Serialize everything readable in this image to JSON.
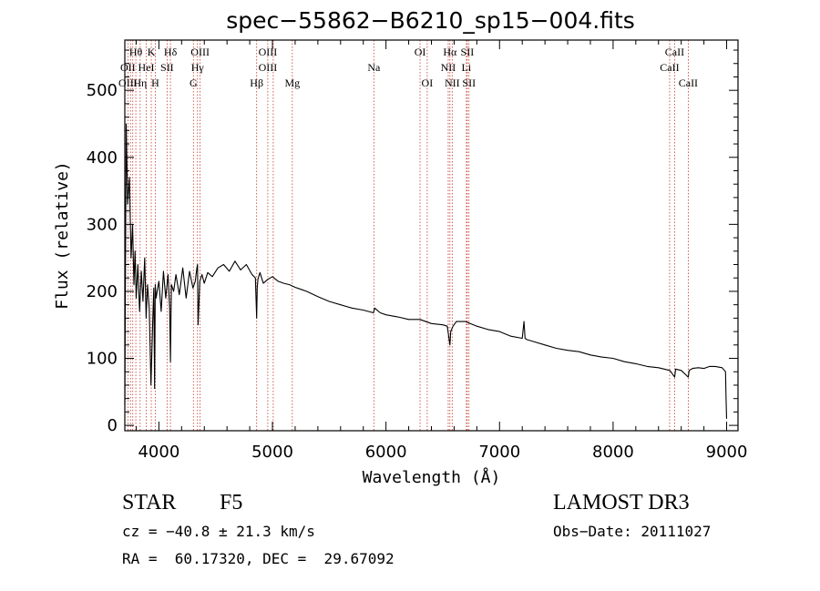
{
  "chart_data": {
    "type": "line",
    "title": "spec−55862−B6210_sp15−004.fits",
    "xlabel": "Wavelength (Å)",
    "ylabel": "Flux (relative)",
    "xlim": [
      3700,
      9100
    ],
    "ylim": [
      -8,
      575
    ],
    "xticks": [
      {
        "value": 4000,
        "label": "4000"
      },
      {
        "value": 5000,
        "label": "5000"
      },
      {
        "value": 6000,
        "label": "6000"
      },
      {
        "value": 7000,
        "label": "7000"
      },
      {
        "value": 8000,
        "label": "8000"
      },
      {
        "value": 9000,
        "label": "9000"
      }
    ],
    "yticks": [
      {
        "value": 0,
        "label": "0"
      },
      {
        "value": 100,
        "label": "100"
      },
      {
        "value": 200,
        "label": "200"
      },
      {
        "value": 300,
        "label": "300"
      },
      {
        "value": 400,
        "label": "400"
      },
      {
        "value": 500,
        "label": "500"
      }
    ],
    "series": [
      {
        "name": "spectrum",
        "x": [
          3700,
          3712,
          3725,
          3740,
          3755,
          3768,
          3780,
          3790,
          3800,
          3815,
          3830,
          3845,
          3860,
          3875,
          3888,
          3900,
          3915,
          3930,
          3945,
          3955,
          3962,
          3968,
          3975,
          3985,
          4000,
          4020,
          4040,
          4060,
          4080,
          4095,
          4102,
          4110,
          4130,
          4150,
          4180,
          4210,
          4240,
          4270,
          4300,
          4320,
          4335,
          4340,
          4345,
          4360,
          4380,
          4400,
          4430,
          4470,
          4520,
          4570,
          4620,
          4670,
          4720,
          4770,
          4820,
          4850,
          4861,
          4866,
          4872,
          4890,
          4920,
          4960,
          5000,
          5050,
          5100,
          5150,
          5200,
          5250,
          5300,
          5400,
          5500,
          5600,
          5700,
          5800,
          5890,
          5900,
          5950,
          6000,
          6100,
          6200,
          6300,
          6400,
          6500,
          6540,
          6563,
          6570,
          6590,
          6620,
          6700,
          6800,
          6900,
          7000,
          7100,
          7200,
          7215,
          7225,
          7240,
          7300,
          7400,
          7500,
          7600,
          7700,
          7800,
          7900,
          8000,
          8100,
          8200,
          8300,
          8400,
          8500,
          8542,
          8550,
          8600,
          8662,
          8670,
          8700,
          8750,
          8800,
          8850,
          8900,
          8960,
          8990,
          8995,
          9000
        ],
        "y": [
          30,
          450,
          330,
          370,
          250,
          300,
          210,
          260,
          190,
          240,
          170,
          230,
          185,
          250,
          160,
          210,
          175,
          60,
          150,
          205,
          55,
          210,
          190,
          200,
          215,
          170,
          230,
          190,
          225,
          175,
          95,
          210,
          200,
          225,
          195,
          235,
          190,
          230,
          205,
          215,
          235,
          240,
          150,
          215,
          225,
          212,
          228,
          222,
          235,
          240,
          230,
          245,
          232,
          240,
          225,
          220,
          160,
          205,
          218,
          228,
          212,
          218,
          222,
          215,
          212,
          210,
          206,
          203,
          200,
          192,
          185,
          180,
          175,
          172,
          168,
          175,
          168,
          165,
          162,
          158,
          158,
          152,
          150,
          148,
          120,
          140,
          148,
          155,
          155,
          148,
          143,
          140,
          133,
          130,
          155,
          130,
          128,
          125,
          120,
          115,
          112,
          110,
          105,
          102,
          100,
          95,
          92,
          88,
          86,
          82,
          72,
          84,
          82,
          72,
          82,
          85,
          86,
          85,
          88,
          88,
          86,
          80,
          40,
          10
        ]
      }
    ],
    "lines_top": [
      {
        "label": "Hθ",
        "x": 3797
      },
      {
        "label": "K",
        "x": 3933
      },
      {
        "label": "Hδ",
        "x": 4102
      },
      {
        "label": "OIII",
        "x": 4363
      },
      {
        "label": "OIII",
        "x": 4959
      },
      {
        "label": "OI",
        "x": 6300
      },
      {
        "label": "Hα",
        "x": 6563
      },
      {
        "label": "SII",
        "x": 6716
      },
      {
        "label": "CaII",
        "x": 8542
      }
    ],
    "lines_mid": [
      {
        "label": "OII",
        "x": 3727
      },
      {
        "label": "HeI",
        "x": 3889
      },
      {
        "label": "SII",
        "x": 4072
      },
      {
        "label": "Hγ",
        "x": 4340
      },
      {
        "label": "OIII",
        "x": 4959
      },
      {
        "label": "Na",
        "x": 5893
      },
      {
        "label": "NII",
        "x": 6548
      },
      {
        "label": "Li",
        "x": 6708
      },
      {
        "label": "CaII",
        "x": 8498
      }
    ],
    "lines_bot": [
      {
        "label": "OIII",
        "x": 3727
      },
      {
        "label": "Hη",
        "x": 3835
      },
      {
        "label": "H",
        "x": 3968
      },
      {
        "label": "G",
        "x": 4304
      },
      {
        "label": "Hβ",
        "x": 4861
      },
      {
        "label": "Mg",
        "x": 5175
      },
      {
        "label": "OI",
        "x": 6363
      },
      {
        "label": "NII",
        "x": 6583
      },
      {
        "label": "SII",
        "x": 6731
      },
      {
        "label": "CaII",
        "x": 8662
      }
    ],
    "line_markers": [
      3727,
      3750,
      3770,
      3797,
      3835,
      3889,
      3933,
      3968,
      4072,
      4102,
      4304,
      4340,
      4363,
      4861,
      4959,
      5007,
      5175,
      5893,
      6300,
      6363,
      6548,
      6563,
      6583,
      6708,
      6716,
      6731,
      8498,
      8542,
      8662
    ],
    "colors": {
      "line_marker": "#c0392b",
      "spectrum": "#000000"
    }
  },
  "info": {
    "object_type": "STAR",
    "subclass": "F5",
    "survey": "LAMOST DR3",
    "cz": "cz = −40.8 ± 21.3 km/s",
    "obs_date": "Obs−Date: 20111027",
    "coords": "RA =  60.17320, DEC =  29.67092"
  }
}
